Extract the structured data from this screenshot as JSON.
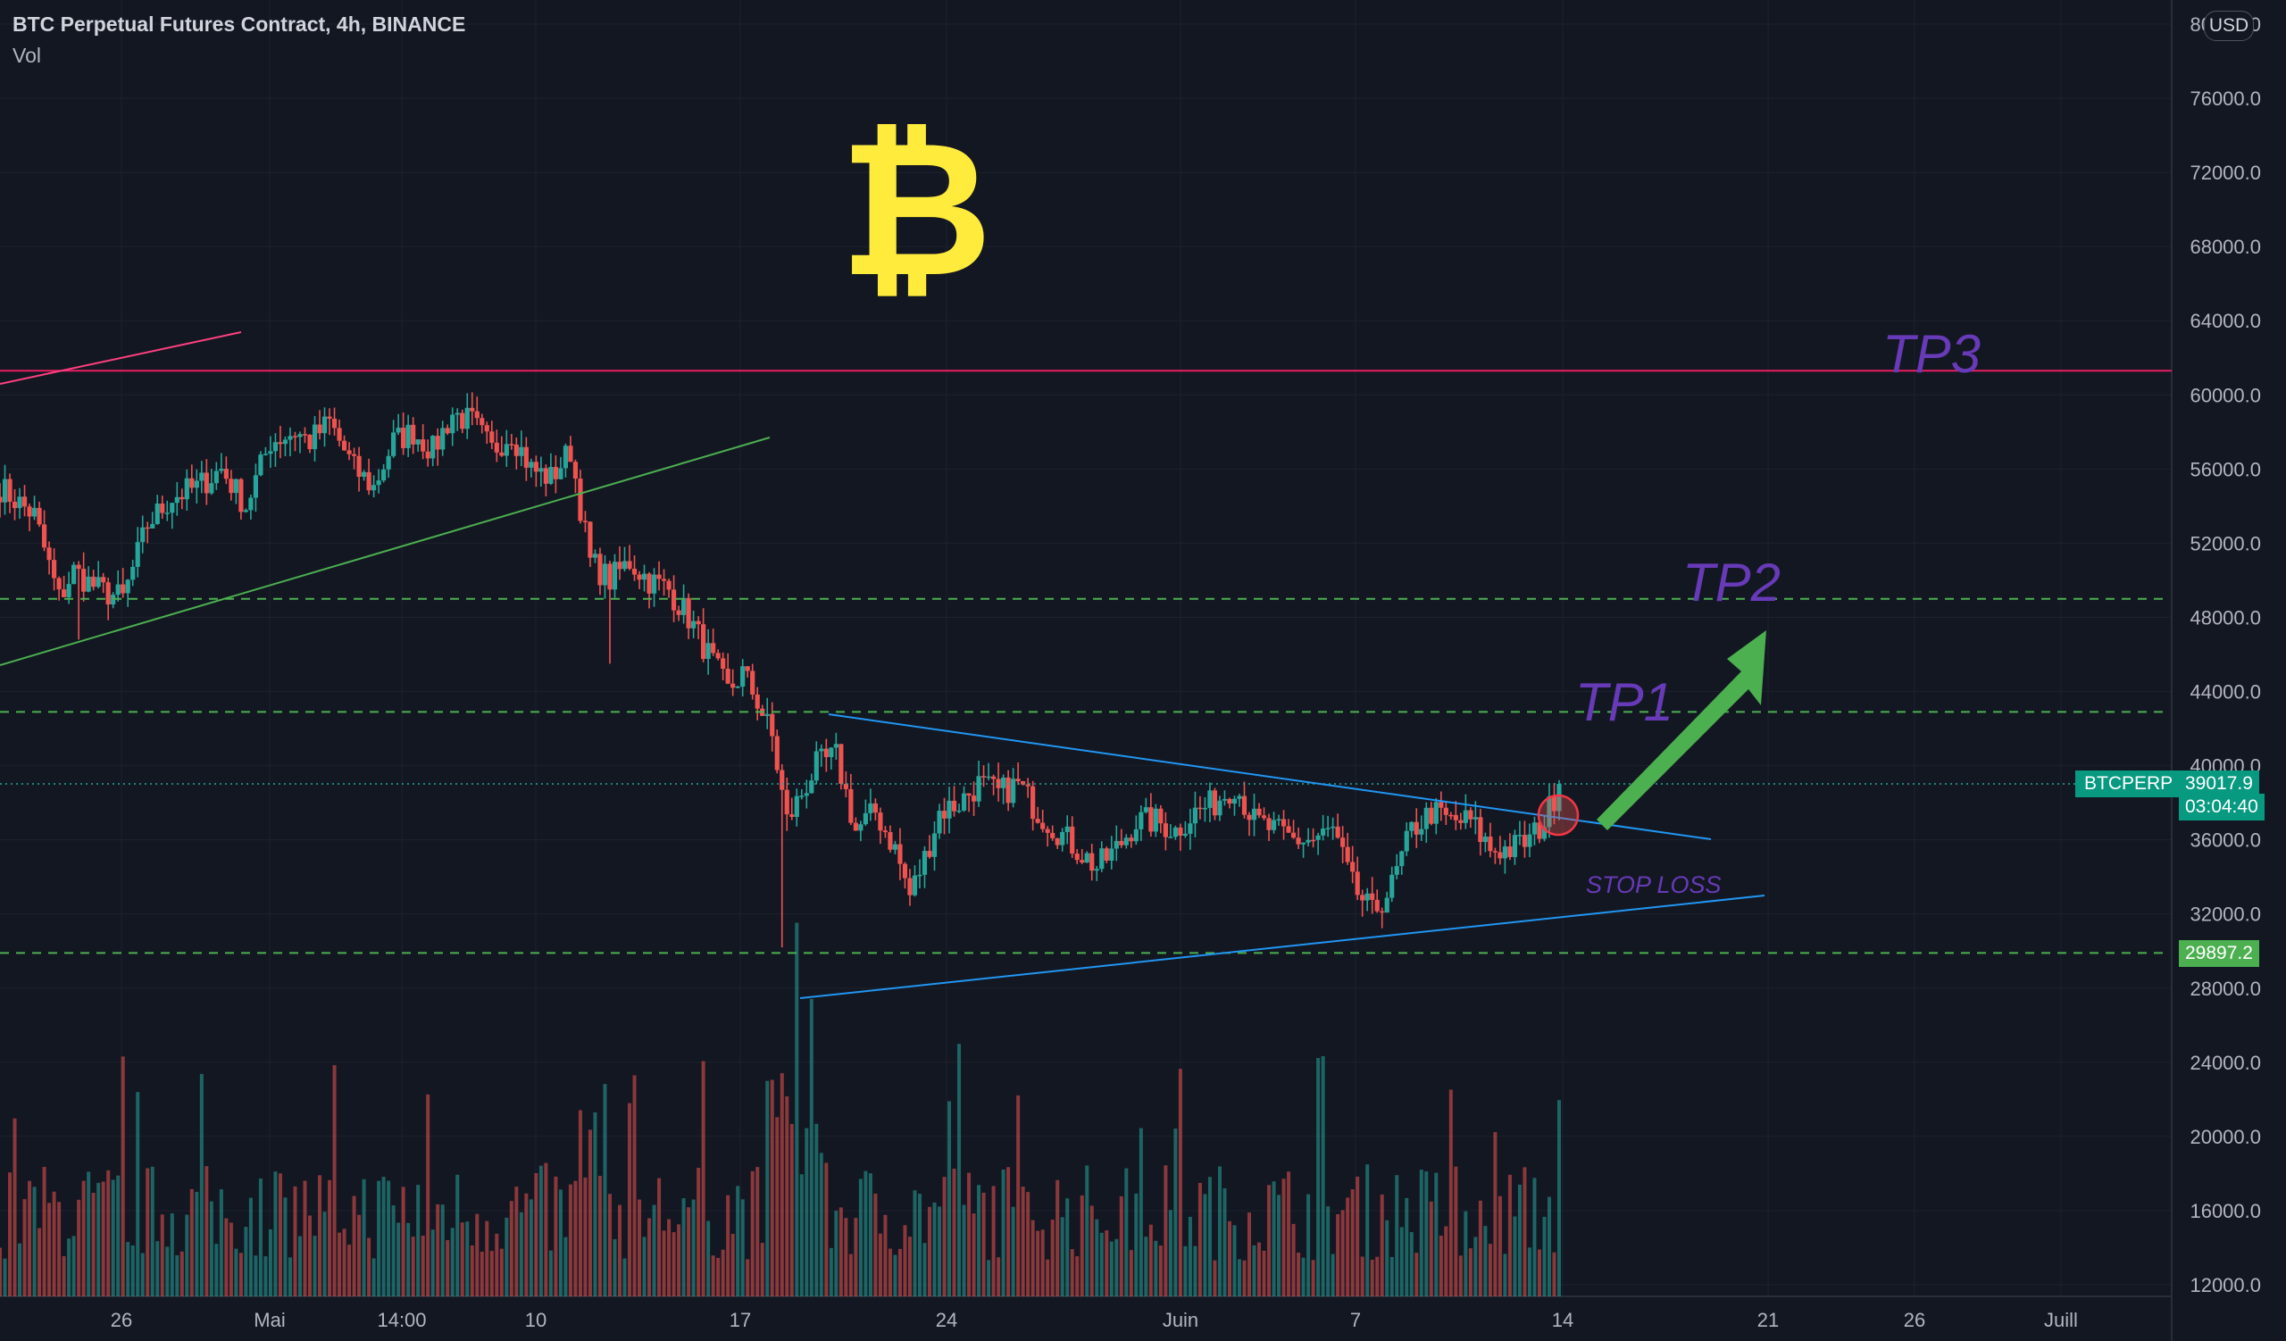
{
  "header": {
    "title": "BTC Perpetual Futures Contract, 4h, BINANCE",
    "vol_label": "Vol"
  },
  "currency_button": "USD",
  "logo": "₿",
  "annotations": {
    "tp1": "TP1",
    "tp2": "TP2",
    "tp3": "TP3",
    "stop_loss": "STOP LOSS"
  },
  "price_scale": {
    "ticks": [
      "80000.0",
      "76000.0",
      "72000.0",
      "68000.0",
      "64000.0",
      "60000.0",
      "56000.0",
      "52000.0",
      "48000.0",
      "44000.0",
      "40000.0",
      "36000.0",
      "32000.0",
      "28000.0",
      "24000.0",
      "20000.0",
      "16000.0",
      "12000.0"
    ],
    "symbol_tag": "BTCPERP",
    "last_price": "39017.9",
    "countdown": "03:04:40",
    "marked_price": "29897.2"
  },
  "time_scale": {
    "ticks": [
      "26",
      "Mai",
      "14:00",
      "10",
      "17",
      "24",
      "Juin",
      "7",
      "14",
      "21",
      "26",
      "Juill"
    ]
  },
  "colors": {
    "background": "#131722",
    "up": "#26a69a",
    "down": "#ef5350",
    "trendline": "#2196f3",
    "tp3_line": "#e91e63",
    "dashed_levels": "#4caf50",
    "arrow": "#4caf50",
    "annotation_text": "#673ab7"
  },
  "chart_data": {
    "type": "candlestick",
    "title": "BTC Perpetual Futures Contract, 4h, BINANCE",
    "ylim": [
      12000,
      80000
    ],
    "y_ticks": [
      80000,
      76000,
      72000,
      68000,
      64000,
      60000,
      56000,
      52000,
      48000,
      44000,
      40000,
      36000,
      32000,
      28000,
      24000,
      20000,
      16000,
      12000
    ],
    "x_ticks": [
      "26",
      "Mai",
      "14:00",
      "10",
      "17",
      "24",
      "Juin",
      "7",
      "14",
      "21",
      "26",
      "Juill"
    ],
    "last_price": 39017.9,
    "marked_level": 29897.2,
    "horizontal_levels": [
      {
        "price": 61300,
        "style": "solid",
        "label": "TP3"
      },
      {
        "price": 49000,
        "style": "dashed",
        "label": "TP2"
      },
      {
        "price": 42900,
        "style": "dashed",
        "label": "TP1"
      },
      {
        "price": 29897.2,
        "style": "dashed",
        "label": ""
      }
    ],
    "close_path": [
      [
        0,
        55000
      ],
      [
        7,
        53500
      ],
      [
        12,
        49000
      ],
      [
        15,
        50500
      ],
      [
        20,
        49500
      ],
      [
        25,
        49000
      ],
      [
        30,
        53000
      ],
      [
        35,
        54500
      ],
      [
        40,
        55000
      ],
      [
        45,
        56000
      ],
      [
        50,
        54000
      ],
      [
        55,
        57500
      ],
      [
        60,
        58000
      ],
      [
        63,
        57500
      ],
      [
        67,
        58500
      ],
      [
        72,
        56000
      ],
      [
        76,
        55000
      ],
      [
        80,
        57500
      ],
      [
        84,
        58000
      ],
      [
        88,
        57000
      ],
      [
        92,
        59000
      ],
      [
        96,
        58500
      ],
      [
        100,
        57000
      ],
      [
        104,
        58000
      ],
      [
        108,
        56000
      ],
      [
        112,
        55500
      ],
      [
        116,
        57000
      ],
      [
        120,
        51000
      ],
      [
        124,
        50000
      ],
      [
        128,
        51000
      ],
      [
        132,
        50000
      ],
      [
        136,
        49500
      ],
      [
        140,
        48000
      ],
      [
        144,
        46000
      ],
      [
        148,
        44000
      ],
      [
        151,
        45000
      ],
      [
        154,
        43500
      ],
      [
        157,
        41500
      ],
      [
        160,
        37000
      ],
      [
        163,
        38500
      ],
      [
        166,
        40000
      ],
      [
        170,
        40500
      ],
      [
        174,
        36500
      ],
      [
        178,
        37500
      ],
      [
        182,
        35500
      ],
      [
        185,
        33000
      ],
      [
        188,
        35000
      ],
      [
        191,
        37500
      ],
      [
        195,
        38000
      ],
      [
        199,
        39000
      ],
      [
        203,
        38500
      ],
      [
        207,
        39000
      ],
      [
        211,
        37500
      ],
      [
        215,
        36500
      ],
      [
        219,
        35500
      ],
      [
        223,
        34500
      ],
      [
        227,
        35500
      ],
      [
        231,
        37000
      ],
      [
        235,
        37000
      ],
      [
        239,
        36500
      ],
      [
        243,
        37500
      ],
      [
        247,
        38000
      ],
      [
        251,
        39000
      ],
      [
        255,
        37000
      ],
      [
        259,
        36500
      ],
      [
        263,
        36000
      ],
      [
        267,
        36000
      ],
      [
        271,
        36500
      ],
      [
        275,
        33500
      ],
      [
        279,
        32000
      ],
      [
        283,
        33500
      ],
      [
        287,
        36500
      ],
      [
        291,
        37500
      ],
      [
        295,
        37000
      ],
      [
        299,
        37000
      ],
      [
        303,
        35500
      ],
      [
        307,
        35500
      ],
      [
        311,
        36000
      ],
      [
        314,
        37000
      ],
      [
        317,
        39017.9
      ]
    ]
  }
}
